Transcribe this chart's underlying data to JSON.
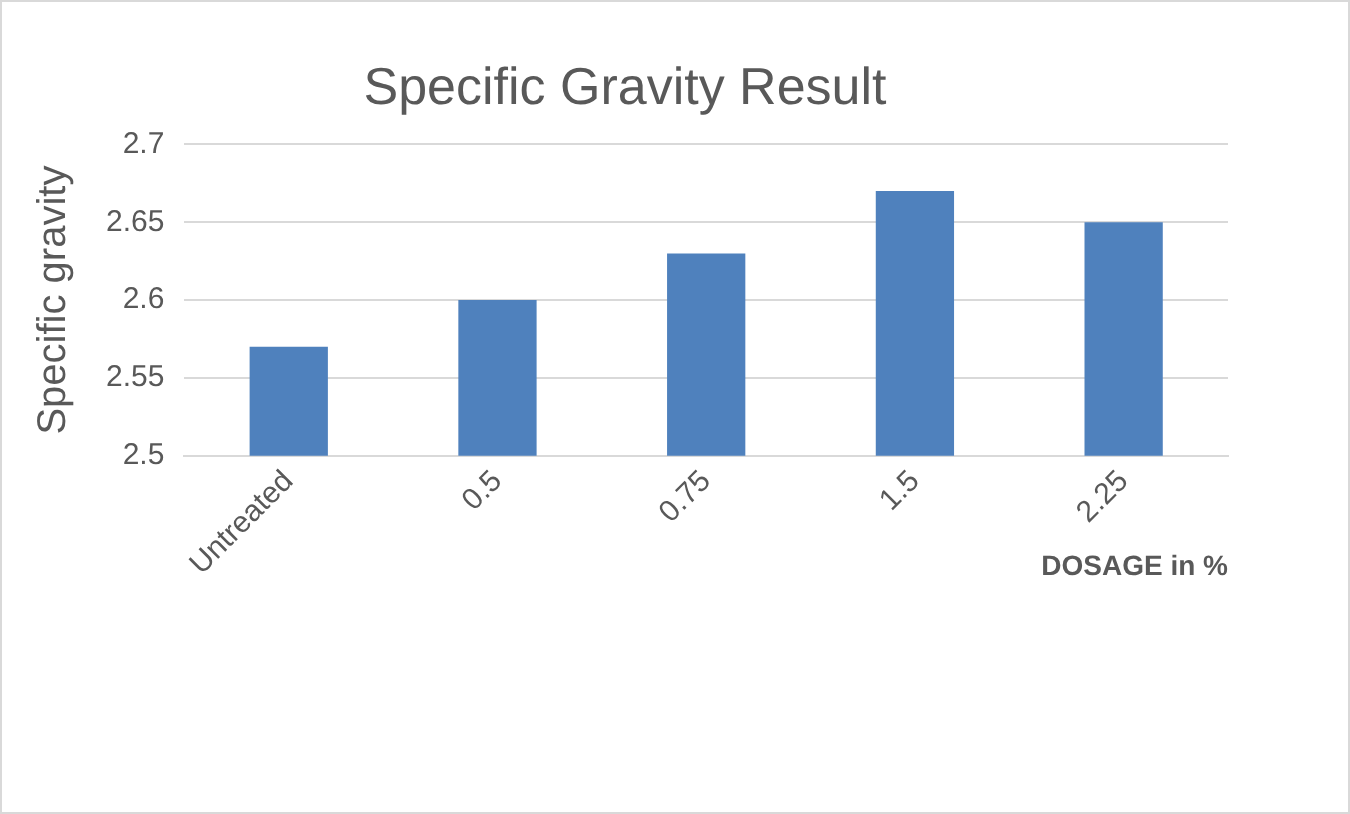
{
  "chart_data": {
    "type": "bar",
    "title": "Specific Gravity Result",
    "xlabel": "DOSAGE in %",
    "ylabel": "Specific gravity",
    "categories": [
      "Untreated",
      "0.5",
      "0.75",
      "1.5",
      "2.25"
    ],
    "values": [
      2.57,
      2.6,
      2.63,
      2.67,
      2.65
    ],
    "color": "#4f81bd",
    "ylim": [
      2.5,
      2.7
    ],
    "yticks": [
      2.5,
      2.55,
      2.6,
      2.65,
      2.7
    ],
    "grid": "y",
    "legend": false
  }
}
